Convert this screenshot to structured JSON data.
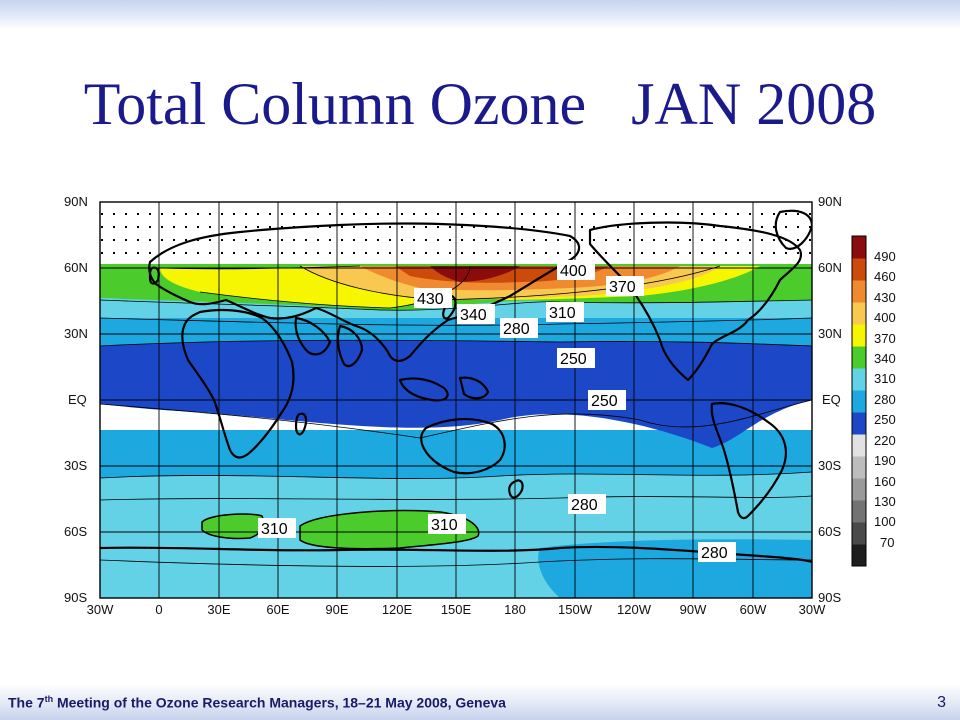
{
  "slide": {
    "title": "Total Column Ozone   JAN 2008",
    "footer_main": "The 7",
    "footer_sup": "th",
    "footer_rest": " Meeting of the Ozone Research Managers, 18–21 May 2008, Geneva",
    "page_number": "3"
  },
  "map": {
    "lat_labels": [
      "90N",
      "60N",
      "30N",
      "EQ",
      "30S",
      "60S",
      "90S"
    ],
    "lon_labels": [
      "30W",
      "0",
      "30E",
      "60E",
      "90E",
      "120E",
      "150E",
      "180",
      "150W",
      "120W",
      "90W",
      "60W",
      "30W"
    ],
    "contour_labels": [
      "400",
      "370",
      "430",
      "340",
      "310",
      "280",
      "250",
      "250",
      "280",
      "310",
      "310",
      "280"
    ]
  },
  "colorbar": {
    "labels": [
      "490",
      "460",
      "430",
      "400",
      "370",
      "340",
      "310",
      "280",
      "250",
      "220",
      "190",
      "160",
      "130",
      "100",
      "70"
    ],
    "colors": [
      "#1e1e1e",
      "#4a4a4a",
      "#737373",
      "#9a9a9a",
      "#bdbdbd",
      "#e2e2e2",
      "#1c48c8",
      "#1ea8e0",
      "#64d2e6",
      "#4ccc2c",
      "#f6f600",
      "#f8c850",
      "#f08a30",
      "#cc4a0a",
      "#8a0c0c"
    ]
  }
}
